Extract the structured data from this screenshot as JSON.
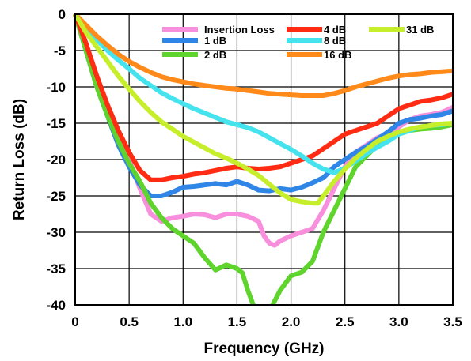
{
  "chart_data": {
    "type": "line",
    "title": "",
    "xlabel": "Frequency (GHz)",
    "ylabel": "Return Loss (dB)",
    "xlim": [
      0,
      3.5
    ],
    "ylim": [
      -40,
      0
    ],
    "xticks": [
      "0",
      "0.5",
      "1.0",
      "1.5",
      "2.0",
      "2.5",
      "3.0",
      "3.5"
    ],
    "yticks": [
      "0",
      "-5",
      "-10",
      "-15",
      "-20",
      "-25",
      "-30",
      "-35",
      "-40"
    ],
    "grid": true,
    "legend_position": "top-right",
    "series": [
      {
        "name": "Insertion Loss",
        "color": "#f78fdc",
        "points": [
          [
            0,
            0
          ],
          [
            0.1,
            -4
          ],
          [
            0.2,
            -9
          ],
          [
            0.3,
            -13
          ],
          [
            0.4,
            -17
          ],
          [
            0.5,
            -20
          ],
          [
            0.6,
            -24
          ],
          [
            0.7,
            -27.5
          ],
          [
            0.8,
            -28.5
          ],
          [
            0.9,
            -28
          ],
          [
            1.0,
            -27.8
          ],
          [
            1.1,
            -27.5
          ],
          [
            1.2,
            -27.6
          ],
          [
            1.3,
            -28
          ],
          [
            1.4,
            -27.5
          ],
          [
            1.5,
            -27.5
          ],
          [
            1.6,
            -27.8
          ],
          [
            1.7,
            -28.5
          ],
          [
            1.75,
            -30.5
          ],
          [
            1.8,
            -31.5
          ],
          [
            1.85,
            -31.8
          ],
          [
            1.9,
            -31.2
          ],
          [
            2.0,
            -30.5
          ],
          [
            2.1,
            -30
          ],
          [
            2.2,
            -29.5
          ],
          [
            2.3,
            -27
          ],
          [
            2.4,
            -24
          ],
          [
            2.5,
            -21
          ],
          [
            2.6,
            -19
          ],
          [
            2.7,
            -18
          ],
          [
            2.8,
            -17
          ],
          [
            2.9,
            -16.5
          ],
          [
            3.0,
            -15.5
          ],
          [
            3.1,
            -14.5
          ],
          [
            3.2,
            -14
          ],
          [
            3.3,
            -13.8
          ],
          [
            3.4,
            -13.5
          ],
          [
            3.5,
            -12.8
          ]
        ]
      },
      {
        "name": "1 dB",
        "color": "#2f86e6",
        "points": [
          [
            0,
            0
          ],
          [
            0.1,
            -5
          ],
          [
            0.2,
            -10
          ],
          [
            0.3,
            -14
          ],
          [
            0.4,
            -18
          ],
          [
            0.5,
            -21
          ],
          [
            0.6,
            -23.5
          ],
          [
            0.7,
            -25
          ],
          [
            0.8,
            -25
          ],
          [
            0.9,
            -24.5
          ],
          [
            1.0,
            -23.8
          ],
          [
            1.1,
            -23.7
          ],
          [
            1.2,
            -23.5
          ],
          [
            1.3,
            -23.3
          ],
          [
            1.4,
            -23.5
          ],
          [
            1.5,
            -23
          ],
          [
            1.6,
            -23.5
          ],
          [
            1.7,
            -24.2
          ],
          [
            1.8,
            -24.3
          ],
          [
            1.9,
            -24
          ],
          [
            2.0,
            -24.2
          ],
          [
            2.1,
            -23.8
          ],
          [
            2.2,
            -23.2
          ],
          [
            2.3,
            -22.5
          ],
          [
            2.4,
            -21
          ],
          [
            2.5,
            -20
          ],
          [
            2.6,
            -19
          ],
          [
            2.7,
            -18.2
          ],
          [
            2.8,
            -17.2
          ],
          [
            2.9,
            -16.2
          ],
          [
            3.0,
            -15
          ],
          [
            3.1,
            -14.5
          ],
          [
            3.2,
            -14.3
          ],
          [
            3.3,
            -14
          ],
          [
            3.4,
            -13.8
          ],
          [
            3.5,
            -13.3
          ]
        ]
      },
      {
        "name": "2 dB",
        "color": "#5fd42c",
        "points": [
          [
            0,
            0
          ],
          [
            0.1,
            -5
          ],
          [
            0.2,
            -10
          ],
          [
            0.3,
            -14
          ],
          [
            0.4,
            -17.5
          ],
          [
            0.5,
            -20.5
          ],
          [
            0.6,
            -23
          ],
          [
            0.7,
            -26
          ],
          [
            0.8,
            -28
          ],
          [
            0.9,
            -29.5
          ],
          [
            1.0,
            -30.5
          ],
          [
            1.1,
            -31.5
          ],
          [
            1.2,
            -33.5
          ],
          [
            1.3,
            -35.2
          ],
          [
            1.4,
            -34.5
          ],
          [
            1.5,
            -35
          ],
          [
            1.55,
            -35.6
          ],
          [
            1.6,
            -38
          ],
          [
            1.65,
            -40
          ],
          [
            null,
            null
          ],
          [
            1.83,
            -40
          ],
          [
            1.9,
            -38
          ],
          [
            2.0,
            -36
          ],
          [
            2.1,
            -35.5
          ],
          [
            2.2,
            -34
          ],
          [
            2.3,
            -30
          ],
          [
            2.4,
            -27
          ],
          [
            2.5,
            -24
          ],
          [
            2.6,
            -21
          ],
          [
            2.7,
            -19.5
          ],
          [
            2.8,
            -18
          ],
          [
            2.9,
            -17
          ],
          [
            3.0,
            -16.5
          ],
          [
            3.1,
            -16
          ],
          [
            3.2,
            -15.8
          ],
          [
            3.3,
            -15.7
          ],
          [
            3.4,
            -15.5
          ],
          [
            3.5,
            -15.2
          ]
        ]
      },
      {
        "name": "4 dB",
        "color": "#ff2b12",
        "points": [
          [
            0,
            0
          ],
          [
            0.1,
            -4
          ],
          [
            0.2,
            -8.5
          ],
          [
            0.3,
            -12.5
          ],
          [
            0.4,
            -16
          ],
          [
            0.5,
            -19
          ],
          [
            0.6,
            -21.5
          ],
          [
            0.7,
            -22.8
          ],
          [
            0.8,
            -22.8
          ],
          [
            0.9,
            -22.5
          ],
          [
            1.0,
            -22.3
          ],
          [
            1.1,
            -22
          ],
          [
            1.2,
            -21.8
          ],
          [
            1.3,
            -21.5
          ],
          [
            1.4,
            -21.2
          ],
          [
            1.5,
            -21
          ],
          [
            1.6,
            -21.2
          ],
          [
            1.7,
            -21.3
          ],
          [
            1.8,
            -21.2
          ],
          [
            1.9,
            -21
          ],
          [
            2.0,
            -20.5
          ],
          [
            2.1,
            -20
          ],
          [
            2.2,
            -19.5
          ],
          [
            2.3,
            -18.5
          ],
          [
            2.4,
            -17.5
          ],
          [
            2.5,
            -16.5
          ],
          [
            2.6,
            -16
          ],
          [
            2.7,
            -15.5
          ],
          [
            2.8,
            -15
          ],
          [
            2.9,
            -14
          ],
          [
            3.0,
            -13
          ],
          [
            3.1,
            -12.5
          ],
          [
            3.2,
            -12
          ],
          [
            3.3,
            -11.8
          ],
          [
            3.4,
            -11.5
          ],
          [
            3.5,
            -11
          ]
        ]
      },
      {
        "name": "8 dB",
        "color": "#44e3ee",
        "points": [
          [
            0,
            0
          ],
          [
            0.1,
            -2
          ],
          [
            0.2,
            -3.5
          ],
          [
            0.3,
            -5
          ],
          [
            0.4,
            -6.3
          ],
          [
            0.5,
            -7.5
          ],
          [
            0.6,
            -8.8
          ],
          [
            0.7,
            -9.8
          ],
          [
            0.8,
            -10.8
          ],
          [
            0.9,
            -11.6
          ],
          [
            1.0,
            -12.3
          ],
          [
            1.1,
            -13
          ],
          [
            1.2,
            -13.6
          ],
          [
            1.3,
            -14.2
          ],
          [
            1.4,
            -14.8
          ],
          [
            1.5,
            -15.2
          ],
          [
            1.6,
            -15.6
          ],
          [
            1.7,
            -16.2
          ],
          [
            1.8,
            -17
          ],
          [
            1.9,
            -17.8
          ],
          [
            2.0,
            -18.6
          ],
          [
            2.1,
            -19.5
          ],
          [
            2.2,
            -20.5
          ],
          [
            2.3,
            -21.3
          ],
          [
            2.4,
            -21.8
          ],
          [
            2.5,
            -21.2
          ],
          [
            2.6,
            -20.2
          ],
          [
            2.7,
            -19.2
          ],
          [
            2.8,
            -18.3
          ],
          [
            2.9,
            -17.5
          ],
          [
            3.0,
            -16.5
          ],
          [
            3.1,
            -16
          ],
          [
            3.2,
            -15.5
          ],
          [
            3.3,
            -15.3
          ],
          [
            3.4,
            -15.2
          ],
          [
            3.5,
            -15
          ]
        ]
      },
      {
        "name": "16 dB",
        "color": "#ff8a1a",
        "points": [
          [
            0,
            0
          ],
          [
            0.1,
            -1.5
          ],
          [
            0.2,
            -3
          ],
          [
            0.3,
            -4.3
          ],
          [
            0.4,
            -5.5
          ],
          [
            0.5,
            -6.5
          ],
          [
            0.6,
            -7.3
          ],
          [
            0.7,
            -8
          ],
          [
            0.8,
            -8.6
          ],
          [
            0.9,
            -9
          ],
          [
            1.0,
            -9.3
          ],
          [
            1.1,
            -9.6
          ],
          [
            1.2,
            -9.8
          ],
          [
            1.3,
            -10
          ],
          [
            1.4,
            -10.2
          ],
          [
            1.5,
            -10.3
          ],
          [
            1.6,
            -10.5
          ],
          [
            1.7,
            -10.7
          ],
          [
            1.8,
            -10.9
          ],
          [
            1.9,
            -11
          ],
          [
            2.0,
            -11.1
          ],
          [
            2.1,
            -11.2
          ],
          [
            2.2,
            -11.2
          ],
          [
            2.3,
            -11.2
          ],
          [
            2.4,
            -10.9
          ],
          [
            2.5,
            -10.5
          ],
          [
            2.6,
            -10
          ],
          [
            2.7,
            -9.6
          ],
          [
            2.8,
            -9.2
          ],
          [
            2.9,
            -8.8
          ],
          [
            3.0,
            -8.5
          ],
          [
            3.1,
            -8.3
          ],
          [
            3.2,
            -8.2
          ],
          [
            3.3,
            -8
          ],
          [
            3.4,
            -7.9
          ],
          [
            3.5,
            -7.8
          ]
        ]
      },
      {
        "name": "31 dB",
        "color": "#c7ee2a",
        "points": [
          [
            0,
            0
          ],
          [
            0.1,
            -2.5
          ],
          [
            0.2,
            -4.5
          ],
          [
            0.3,
            -6.5
          ],
          [
            0.4,
            -8.5
          ],
          [
            0.5,
            -10.3
          ],
          [
            0.6,
            -12
          ],
          [
            0.7,
            -13.5
          ],
          [
            0.8,
            -14.8
          ],
          [
            0.9,
            -15.8
          ],
          [
            1.0,
            -16.8
          ],
          [
            1.1,
            -17.6
          ],
          [
            1.2,
            -18.4
          ],
          [
            1.3,
            -19.2
          ],
          [
            1.4,
            -19.8
          ],
          [
            1.5,
            -20.5
          ],
          [
            1.6,
            -21.3
          ],
          [
            1.7,
            -22.2
          ],
          [
            1.8,
            -23.4
          ],
          [
            1.9,
            -24.6
          ],
          [
            2.0,
            -25.5
          ],
          [
            2.1,
            -25.8
          ],
          [
            2.2,
            -26
          ],
          [
            2.25,
            -26
          ],
          [
            2.3,
            -25
          ],
          [
            2.4,
            -23
          ],
          [
            2.5,
            -21.3
          ],
          [
            2.6,
            -19.8
          ],
          [
            2.7,
            -18.6
          ],
          [
            2.8,
            -17.5
          ],
          [
            2.9,
            -16.8
          ],
          [
            3.0,
            -16.2
          ],
          [
            3.1,
            -15.8
          ],
          [
            3.2,
            -15.5
          ],
          [
            3.3,
            -15.3
          ],
          [
            3.4,
            -15.1
          ],
          [
            3.5,
            -15
          ]
        ]
      }
    ]
  }
}
